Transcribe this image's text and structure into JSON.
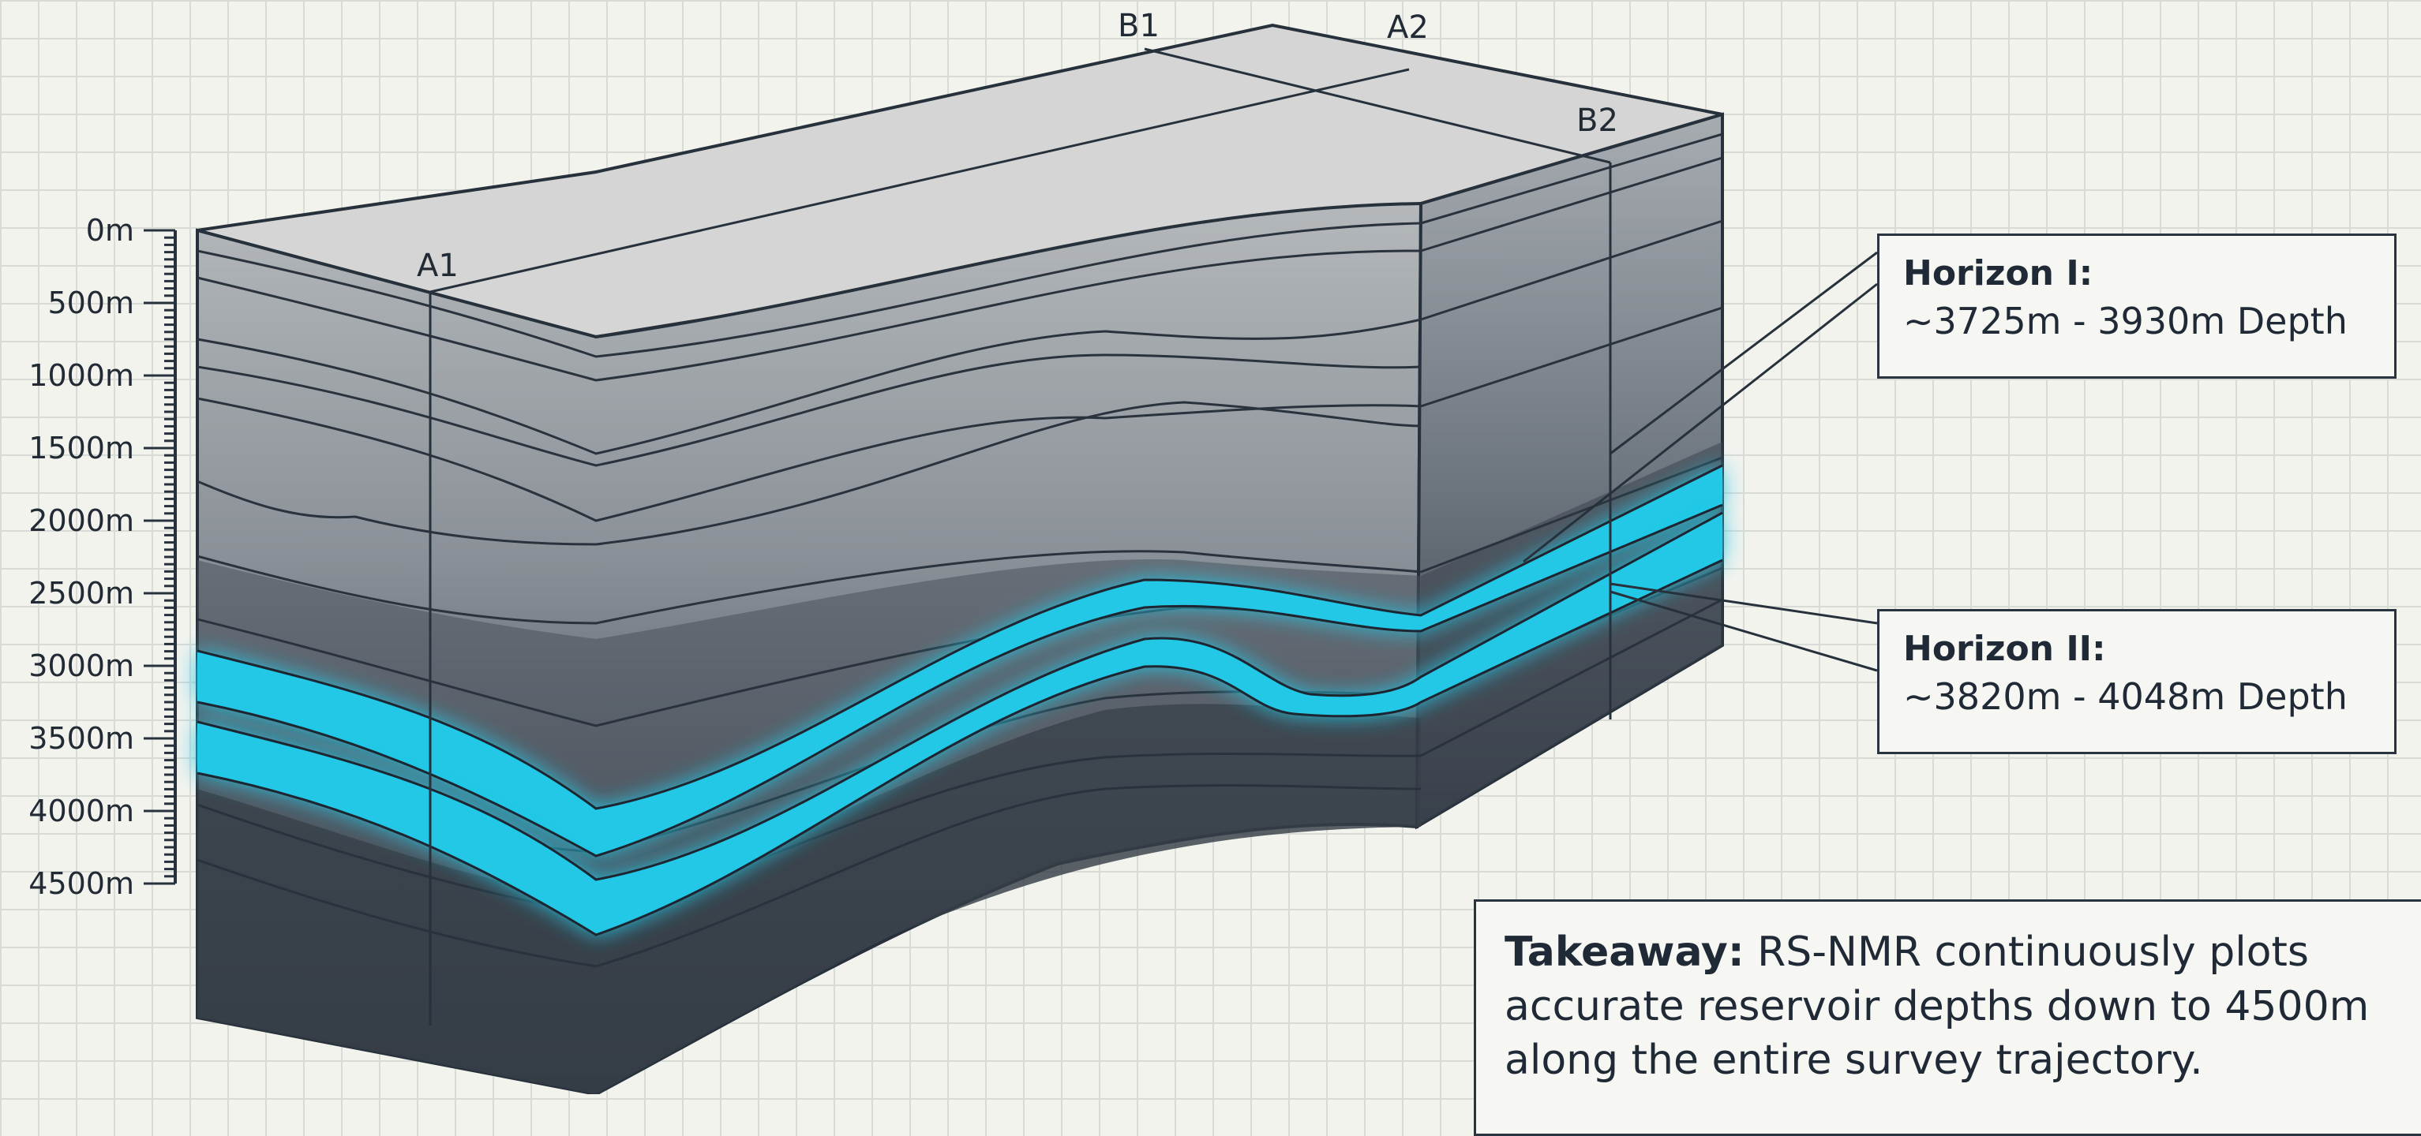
{
  "depth_scale": {
    "labels": [
      "0m",
      "500m",
      "1000m",
      "1500m",
      "2000m",
      "2500m",
      "3000m",
      "3500m",
      "4000m",
      "4500m"
    ]
  },
  "sections": {
    "a1": "A1",
    "a2": "A2",
    "b1": "B1",
    "b2": "B2"
  },
  "horizons": [
    {
      "title": "Horizon I:",
      "depth": "~3725m - 3930m Depth"
    },
    {
      "title": "Horizon II:",
      "depth": "~3820m - 4048m Depth"
    }
  ],
  "takeaway": {
    "label": "Takeaway:",
    "text": " RS-NMR continuously plots accurate reservoir depths down to 4500m along the entire survey trajectory."
  },
  "colors": {
    "horizon": "#22c8e6",
    "grid": "#d9dbd6",
    "block_top": "#d4d5d4"
  }
}
